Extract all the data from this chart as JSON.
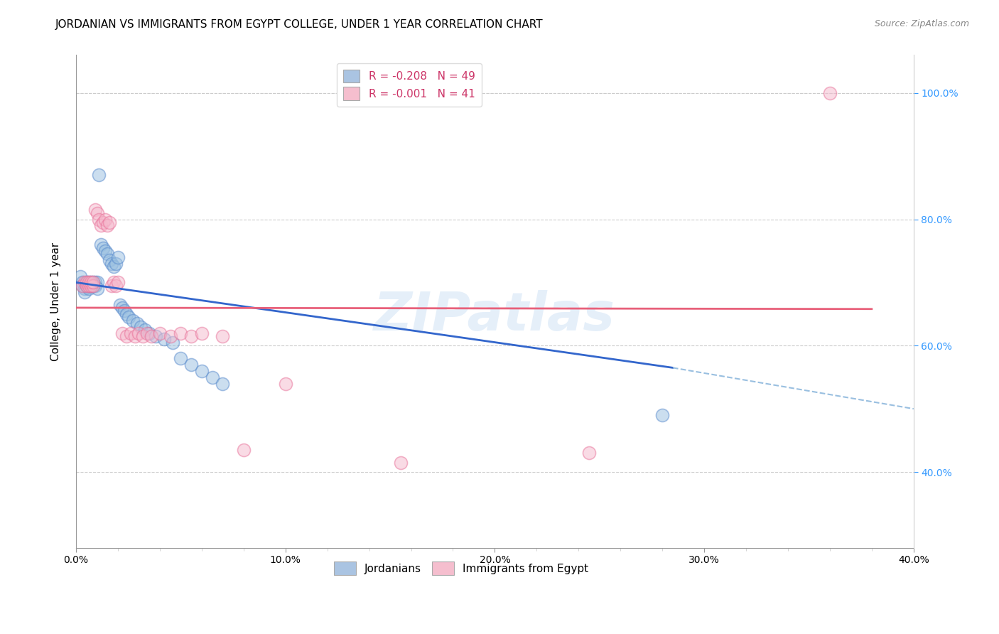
{
  "title": "JORDANIAN VS IMMIGRANTS FROM EGYPT COLLEGE, UNDER 1 YEAR CORRELATION CHART",
  "source": "Source: ZipAtlas.com",
  "ylabel": "College, Under 1 year",
  "xmin": 0.0,
  "xmax": 0.4,
  "ymin": 0.28,
  "ymax": 1.06,
  "xtick_labels": [
    "0.0%",
    "",
    "",
    "",
    "",
    "10.0%",
    "",
    "",
    "",
    "",
    "20.0%",
    "",
    "",
    "",
    "",
    "30.0%",
    "",
    "",
    "",
    "",
    "40.0%"
  ],
  "xtick_vals": [
    0.0,
    0.02,
    0.04,
    0.06,
    0.08,
    0.1,
    0.12,
    0.14,
    0.16,
    0.18,
    0.2,
    0.22,
    0.24,
    0.26,
    0.28,
    0.3,
    0.32,
    0.34,
    0.36,
    0.38,
    0.4
  ],
  "ytick_labels_right": [
    "40.0%",
    "60.0%",
    "80.0%",
    "100.0%"
  ],
  "ytick_vals_right": [
    0.4,
    0.6,
    0.8,
    1.0
  ],
  "legend_label1": "R = -0.208   N = 49",
  "legend_label2": "R = -0.001   N = 41",
  "legend_color1": "#aac4e2",
  "legend_color2": "#f5bece",
  "jordanian_color": "#99bfe0",
  "egypt_color": "#f5b8cc",
  "jordanian_edge": "#5588cc",
  "egypt_edge": "#e87098",
  "blue_line_color": "#3366cc",
  "pink_line_color": "#e8607a",
  "watermark": "ZIPatlas",
  "grid_color": "#cccccc",
  "background_color": "#ffffff",
  "title_fontsize": 11,
  "axis_label_fontsize": 11,
  "tick_fontsize": 10,
  "marker_size": 13,
  "marker_alpha": 0.5,
  "jordanian_x": [
    0.002,
    0.003,
    0.003,
    0.004,
    0.004,
    0.005,
    0.005,
    0.005,
    0.006,
    0.006,
    0.006,
    0.007,
    0.007,
    0.007,
    0.008,
    0.008,
    0.009,
    0.009,
    0.01,
    0.01,
    0.011,
    0.012,
    0.013,
    0.014,
    0.015,
    0.016,
    0.017,
    0.018,
    0.019,
    0.02,
    0.021,
    0.022,
    0.023,
    0.024,
    0.025,
    0.027,
    0.029,
    0.031,
    0.033,
    0.035,
    0.038,
    0.042,
    0.046,
    0.05,
    0.055,
    0.06,
    0.065,
    0.07,
    0.28
  ],
  "jordanian_y": [
    0.71,
    0.7,
    0.695,
    0.69,
    0.685,
    0.695,
    0.7,
    0.695,
    0.69,
    0.695,
    0.7,
    0.695,
    0.7,
    0.695,
    0.7,
    0.695,
    0.7,
    0.695,
    0.7,
    0.69,
    0.87,
    0.76,
    0.755,
    0.75,
    0.745,
    0.735,
    0.73,
    0.725,
    0.73,
    0.74,
    0.665,
    0.66,
    0.655,
    0.65,
    0.645,
    0.64,
    0.635,
    0.63,
    0.625,
    0.62,
    0.615,
    0.61,
    0.605,
    0.58,
    0.57,
    0.56,
    0.55,
    0.54,
    0.49
  ],
  "egypt_x": [
    0.003,
    0.004,
    0.005,
    0.005,
    0.006,
    0.006,
    0.007,
    0.007,
    0.008,
    0.008,
    0.009,
    0.01,
    0.011,
    0.012,
    0.013,
    0.014,
    0.015,
    0.016,
    0.017,
    0.018,
    0.019,
    0.02,
    0.022,
    0.024,
    0.026,
    0.028,
    0.03,
    0.032,
    0.034,
    0.036,
    0.04,
    0.045,
    0.05,
    0.055,
    0.06,
    0.07,
    0.08,
    0.1,
    0.155,
    0.245,
    0.36
  ],
  "egypt_y": [
    0.695,
    0.7,
    0.695,
    0.7,
    0.695,
    0.7,
    0.695,
    0.7,
    0.695,
    0.7,
    0.815,
    0.81,
    0.8,
    0.79,
    0.795,
    0.8,
    0.79,
    0.795,
    0.695,
    0.7,
    0.695,
    0.7,
    0.62,
    0.615,
    0.62,
    0.615,
    0.62,
    0.615,
    0.62,
    0.615,
    0.62,
    0.615,
    0.62,
    0.615,
    0.62,
    0.615,
    0.435,
    0.54,
    0.415,
    0.43,
    1.0
  ],
  "blue_trend_x0": 0.0,
  "blue_trend_y0": 0.7,
  "blue_trend_x1": 0.285,
  "blue_trend_y1": 0.565,
  "blue_trend_dash_x1": 0.4,
  "blue_trend_dash_y1": 0.5,
  "pink_trend_x0": 0.0,
  "pink_trend_y0": 0.66,
  "pink_trend_x1": 0.38,
  "pink_trend_y1": 0.658
}
